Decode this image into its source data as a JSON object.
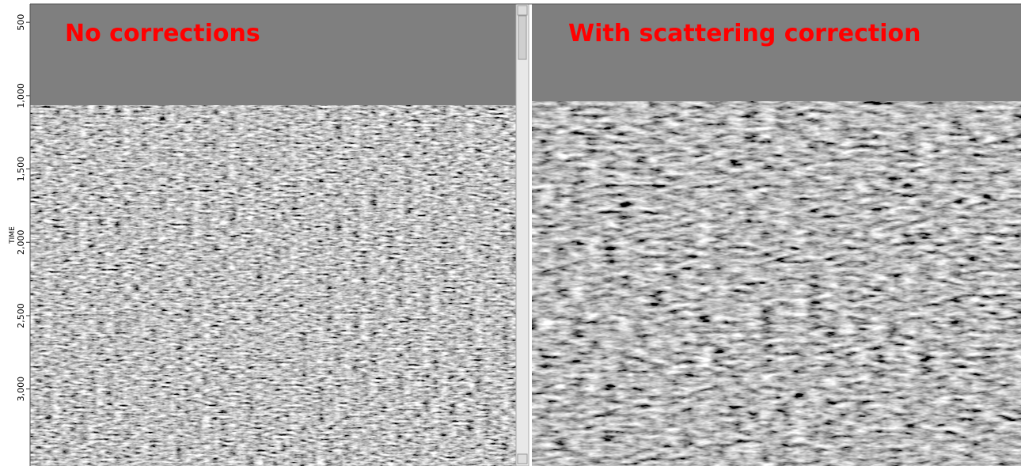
{
  "axis": {
    "label": "TIME",
    "ylim": [
      375,
      3525
    ],
    "ticks": [
      500,
      {
        "value": 1000,
        "label": "1,000"
      },
      {
        "value": 1500,
        "label": "1,500"
      },
      {
        "value": 2000,
        "label": "2,000"
      },
      {
        "value": 2500,
        "label": "2,500"
      },
      {
        "value": 3000,
        "label": "3,000"
      }
    ]
  },
  "panels": [
    {
      "title": "No corrections"
    },
    {
      "title": "With scattering correction"
    }
  ]
}
